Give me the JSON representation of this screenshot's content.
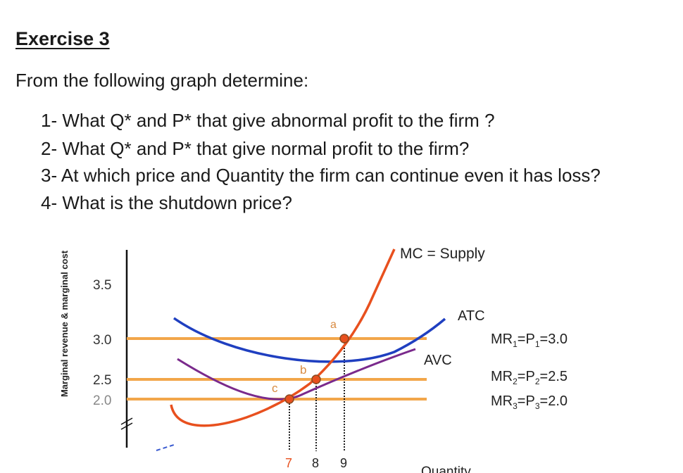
{
  "exercise": {
    "title": "Exercise 3",
    "intro": "From the following graph determine:",
    "questions": [
      "1- What Q* and P* that give abnormal profit to the firm ?",
      "2- What Q* and P* that give normal profit to the firm?",
      "3- At which price and Quantity the firm can continue even it has loss?",
      "4- What is the shutdown price?"
    ]
  },
  "chart_data": {
    "type": "line",
    "ylabel": "Marginal revenue & marginal cost",
    "xlabel": "Quantity",
    "y_ticks": [
      "3.5",
      "3.0",
      "2.5",
      "2.0"
    ],
    "x_ticks": [
      "7",
      "8",
      "9"
    ],
    "series": [
      {
        "name": "MC = Supply",
        "color": "#e8501e"
      },
      {
        "name": "ATC",
        "color": "#1f3fc0"
      },
      {
        "name": "AVC",
        "color": "#7a2a8c"
      },
      {
        "name": "MR1=P1=3.0",
        "value": 3.0,
        "color": "#f2a64a"
      },
      {
        "name": "MR2=P2=2.5",
        "value": 2.5,
        "color": "#f2a64a"
      },
      {
        "name": "MR3=P3=2.0",
        "value": 2.0,
        "color": "#f2a64a"
      }
    ],
    "points": [
      {
        "label": "a",
        "x": 9,
        "y": 3.0
      },
      {
        "label": "b",
        "x": 8,
        "y": 2.5
      },
      {
        "label": "c",
        "x": 7,
        "y": 2.0
      }
    ],
    "mr_labels": [
      {
        "base1": "MR",
        "sub1": "1",
        "mid": "=P",
        "sub2": "1",
        "tail": "=3.0"
      },
      {
        "base1": "MR",
        "sub1": "2",
        "mid": "=P",
        "sub2": "2",
        "tail": "=2.5"
      },
      {
        "base1": "MR",
        "sub1": "3",
        "mid": "=P",
        "sub2": "3",
        "tail": "=2.0"
      }
    ]
  }
}
